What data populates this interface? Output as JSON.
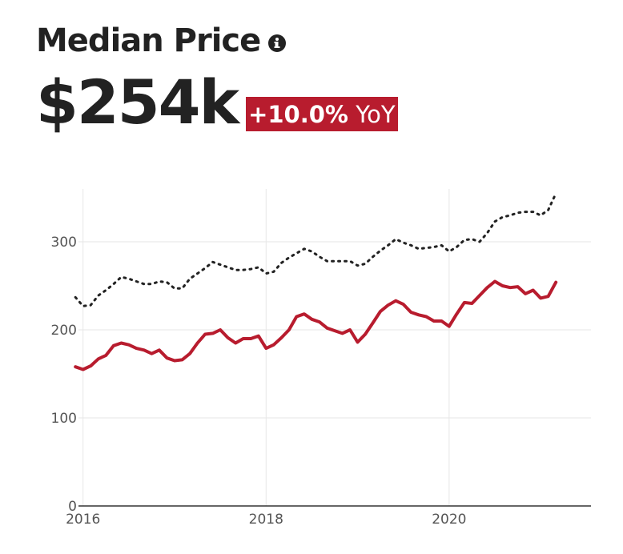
{
  "header": {
    "title": "Median Price",
    "info_icon": "info-circle-icon",
    "value": "$254k",
    "change_pct": "+10.0%",
    "change_unit": "YoY"
  },
  "colors": {
    "primary_series": "#b81c2e",
    "comparison_series": "#222222",
    "badge": "#b81c2e"
  },
  "chart_data": {
    "type": "line",
    "xlim": [
      2015.95,
      2021.55
    ],
    "ylim": [
      0,
      360
    ],
    "x_ticks": [
      2016,
      2018,
      2020
    ],
    "x_tick_labels": [
      "2016",
      "2018",
      "2020"
    ],
    "y_ticks": [
      0,
      100,
      200,
      300
    ],
    "y_tick_labels": [
      "0",
      "100",
      "200",
      "300"
    ],
    "grid": true,
    "legend": "none",
    "series": [
      {
        "style": "solid",
        "color": "#b81c2e",
        "x": [
          2015.917,
          2016.0,
          2016.083,
          2016.167,
          2016.25,
          2016.333,
          2016.417,
          2016.5,
          2016.583,
          2016.667,
          2016.75,
          2016.833,
          2016.917,
          2017.0,
          2017.083,
          2017.167,
          2017.25,
          2017.333,
          2017.417,
          2017.5,
          2017.583,
          2017.667,
          2017.75,
          2017.833,
          2017.917,
          2018.0,
          2018.083,
          2018.167,
          2018.25,
          2018.333,
          2018.417,
          2018.5,
          2018.583,
          2018.667,
          2018.75,
          2018.833,
          2018.917,
          2019.0,
          2019.083,
          2019.167,
          2019.25,
          2019.333,
          2019.417,
          2019.5,
          2019.583,
          2019.667,
          2019.75,
          2019.833,
          2019.917,
          2020.0,
          2020.083,
          2020.167,
          2020.25,
          2020.333,
          2020.417,
          2020.5,
          2020.583,
          2020.667,
          2020.75,
          2020.833,
          2020.917,
          2021.0,
          2021.083,
          2021.167
        ],
        "y": [
          158,
          155,
          159,
          167,
          171,
          182,
          185,
          183,
          179,
          177,
          173,
          177,
          168,
          165,
          166,
          173,
          185,
          195,
          196,
          200,
          191,
          185,
          190,
          190,
          193,
          179,
          183,
          191,
          200,
          215,
          218,
          212,
          209,
          202,
          199,
          196,
          200,
          186,
          195,
          208,
          221,
          228,
          233,
          229,
          220,
          217,
          215,
          210,
          210,
          204,
          218,
          231,
          230,
          239,
          248,
          255,
          250,
          248,
          249,
          241,
          245,
          236,
          238,
          254
        ]
      },
      {
        "style": "dotted",
        "color": "#222222",
        "x": [
          2015.917,
          2016.0,
          2016.083,
          2016.167,
          2016.25,
          2016.333,
          2016.417,
          2016.5,
          2016.583,
          2016.667,
          2016.75,
          2016.833,
          2016.917,
          2017.0,
          2017.083,
          2017.167,
          2017.25,
          2017.333,
          2017.417,
          2017.5,
          2017.583,
          2017.667,
          2017.75,
          2017.833,
          2017.917,
          2018.0,
          2018.083,
          2018.167,
          2018.25,
          2018.333,
          2018.417,
          2018.5,
          2018.583,
          2018.667,
          2018.75,
          2018.833,
          2018.917,
          2019.0,
          2019.083,
          2019.167,
          2019.25,
          2019.333,
          2019.417,
          2019.5,
          2019.583,
          2019.667,
          2019.75,
          2019.833,
          2019.917,
          2020.0,
          2020.083,
          2020.167,
          2020.25,
          2020.333,
          2020.417,
          2020.5,
          2020.583,
          2020.667,
          2020.75,
          2020.833,
          2020.917,
          2021.0,
          2021.083,
          2021.167
        ],
        "y": [
          237,
          227,
          228,
          239,
          245,
          252,
          260,
          258,
          255,
          252,
          252,
          255,
          254,
          247,
          247,
          258,
          264,
          270,
          277,
          274,
          271,
          268,
          268,
          269,
          271,
          264,
          266,
          276,
          282,
          287,
          292,
          289,
          283,
          278,
          278,
          278,
          278,
          273,
          275,
          283,
          290,
          296,
          303,
          299,
          296,
          292,
          293,
          294,
          296,
          289,
          294,
          302,
          303,
          300,
          310,
          323,
          328,
          330,
          333,
          334,
          334,
          330,
          336,
          355
        ]
      }
    ]
  }
}
